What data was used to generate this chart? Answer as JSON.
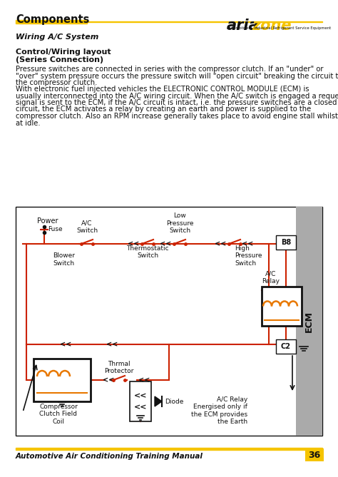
{
  "title": "Components",
  "subtitle": "Wiring A/C System",
  "section_title_line1": "Control/Wiring layout",
  "section_title_line2": "(Series Connection)",
  "body_text1_line1": "Pressure switches are connected in series with the compressor clutch. If an \"under\" or",
  "body_text1_line2": "\"over\" system pressure occurs the pressure switch will \"open circuit\" breaking the circuit to",
  "body_text1_line3": "the compressor clutch.",
  "body_text2_line1": "With electronic fuel injected vehicles the ELECTRONIC CONTROL MODULE (ECM) is",
  "body_text2_line2": "usually interconnected into the A/C wiring circuit. When the A/C switch is engaged a request",
  "body_text2_line3": "signal is sent to the ECM, if the A/C circuit is intact, i.e. the pressure switches are a closed",
  "body_text2_line4": "circuit, the ECM activates a relay by creating an earth and power is supplied to the",
  "body_text2_line5": "compressor clutch. Also an RPM increase generally takes place to avoid engine stall whilst",
  "body_text2_line6": "at idle.",
  "footer_text": "Automotive Air Conditioning Training Manual",
  "page_number": "36",
  "yellow_color": "#F5C400",
  "red_color": "#CC2200",
  "orange_color": "#E87800",
  "black_color": "#111111",
  "white_color": "#FFFFFF",
  "ecm_gray": "#AAAAAA",
  "b8_label": "B8",
  "c2_label": "C2",
  "ecm_label": "ECM",
  "power_label": "Power",
  "fuse_label": "Fuse",
  "ac_switch_label": "A/C\nSwitch",
  "blower_switch_label": "Blower\nSwitch",
  "thermostatic_switch_label": "Thermostatic\nSwitch",
  "low_pressure_switch_label": "Low\nPressure\nSwitch",
  "high_pressure_switch_label": "High\nPressure\nSwitch",
  "thermal_protector_label": "Thrmal\nProtector",
  "ac_relay_label": "A/C\nRelay",
  "diode_label": "Diode",
  "compressor_label": "Compressor\nClutch Field\nCoil",
  "ac_relay_note": "A/C Relay\nEnergised only if\nthe ECM provides\nthe Earth"
}
